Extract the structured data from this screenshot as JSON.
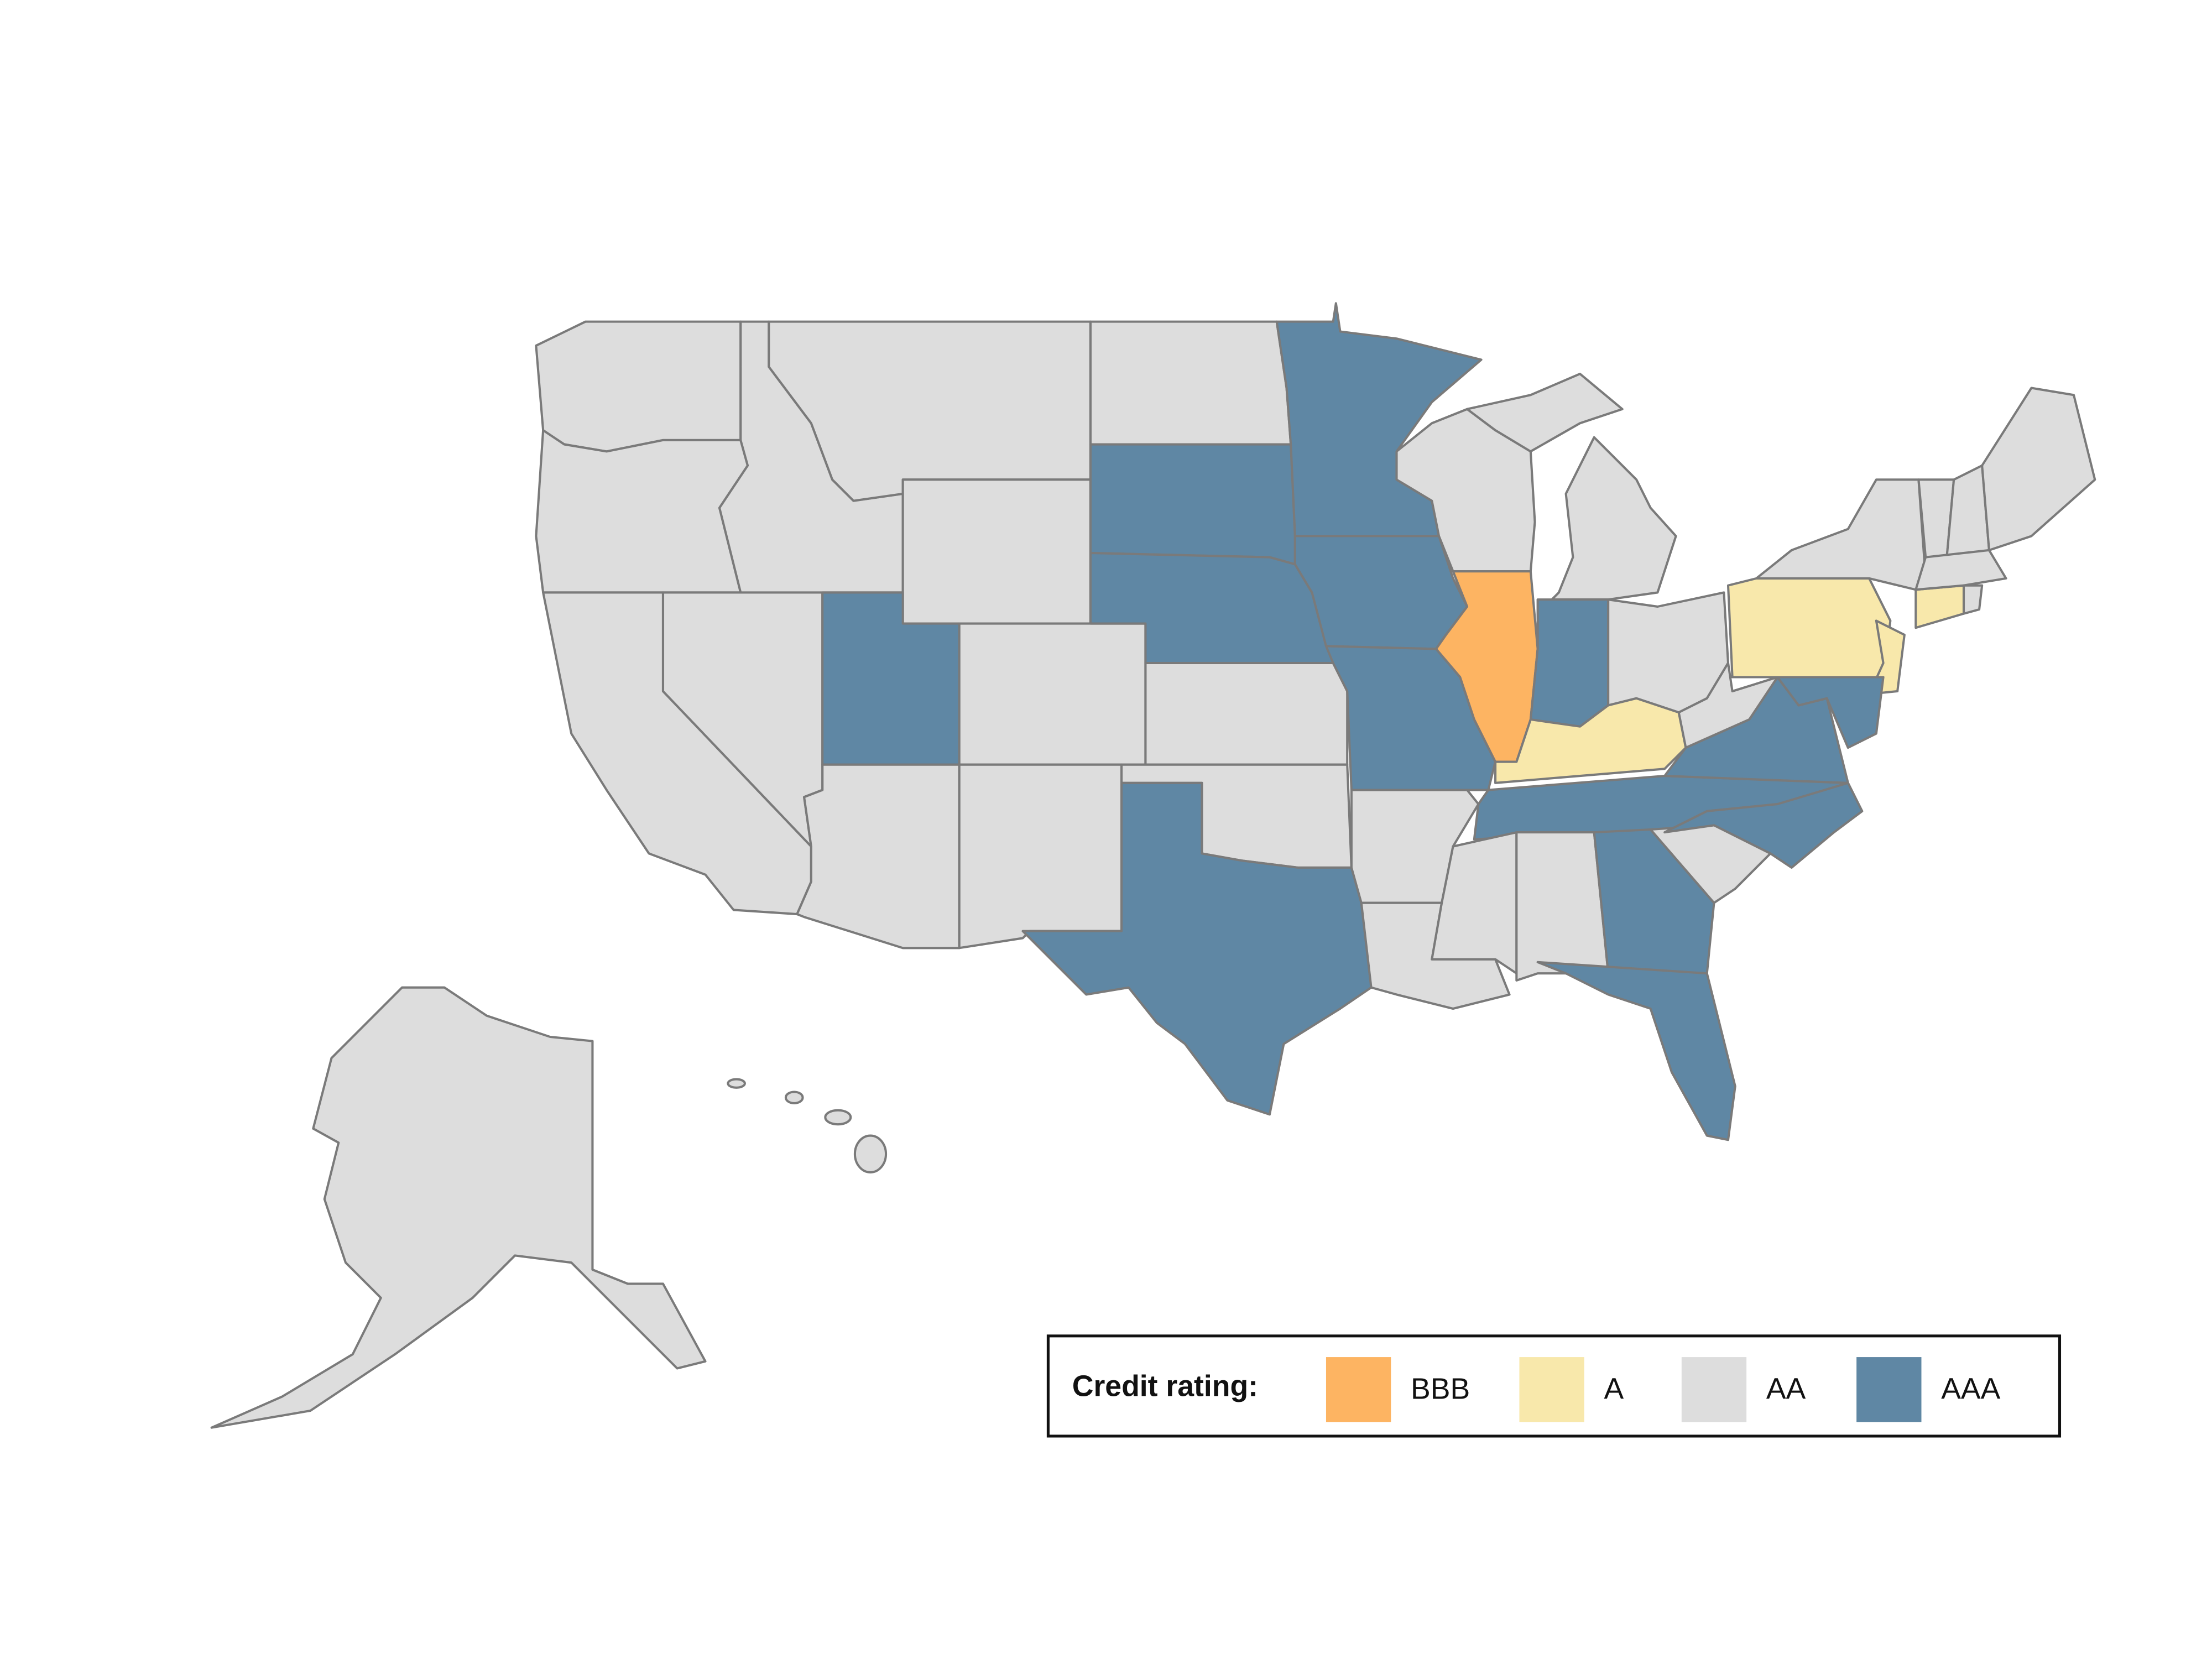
{
  "legend": {
    "title": "Credit rating:",
    "items": [
      {
        "label": "BBB",
        "color": "#fdb462"
      },
      {
        "label": "A",
        "color": "#f8e8ab"
      },
      {
        "label": "AA",
        "color": "#dddddd"
      },
      {
        "label": "AAA",
        "color": "#5f87a4"
      }
    ]
  }
}
